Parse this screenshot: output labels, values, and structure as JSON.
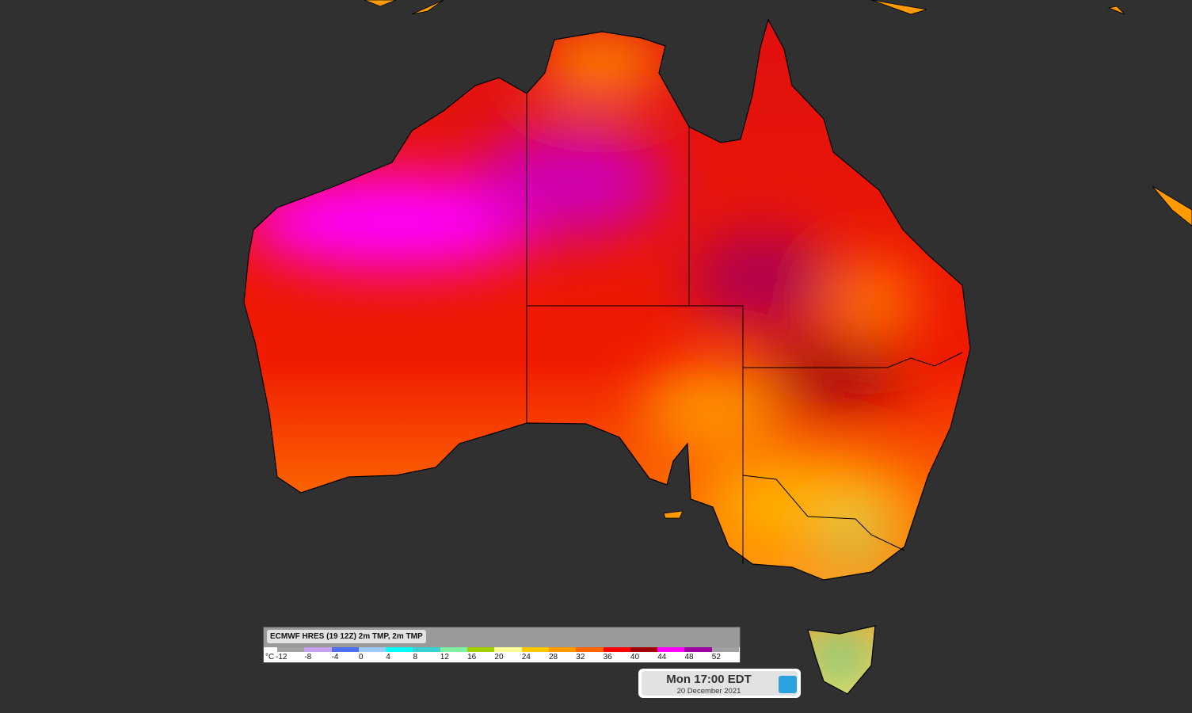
{
  "map": {
    "region": "Australia",
    "variable": "2m temperature",
    "land_hot_color": "#ff00ff",
    "background_color": "#303030"
  },
  "legend": {
    "title": "ECMWF HRES (19 12Z) 2m TMP, 2m TMP",
    "unit": "°C",
    "ticks": [
      "-12",
      "-8",
      "-4",
      "0",
      "4",
      "8",
      "12",
      "16",
      "20",
      "24",
      "28",
      "32",
      "36",
      "40",
      "44",
      "48",
      "52"
    ],
    "colors": [
      "#a0a0a0",
      "#c8a0f0",
      "#4a70f0",
      "#a0c8f8",
      "#00ffff",
      "#3ccfcf",
      "#80f0a0",
      "#a0d000",
      "#ffff99",
      "#ffc800",
      "#ff9900",
      "#ff6600",
      "#ff0000",
      "#a00000",
      "#ff00ff",
      "#a000a0",
      "#a0a0a0"
    ]
  },
  "timestamp": {
    "time": "Mon 17:00 EDT",
    "date": "20 December 2021",
    "logo": "wz"
  }
}
